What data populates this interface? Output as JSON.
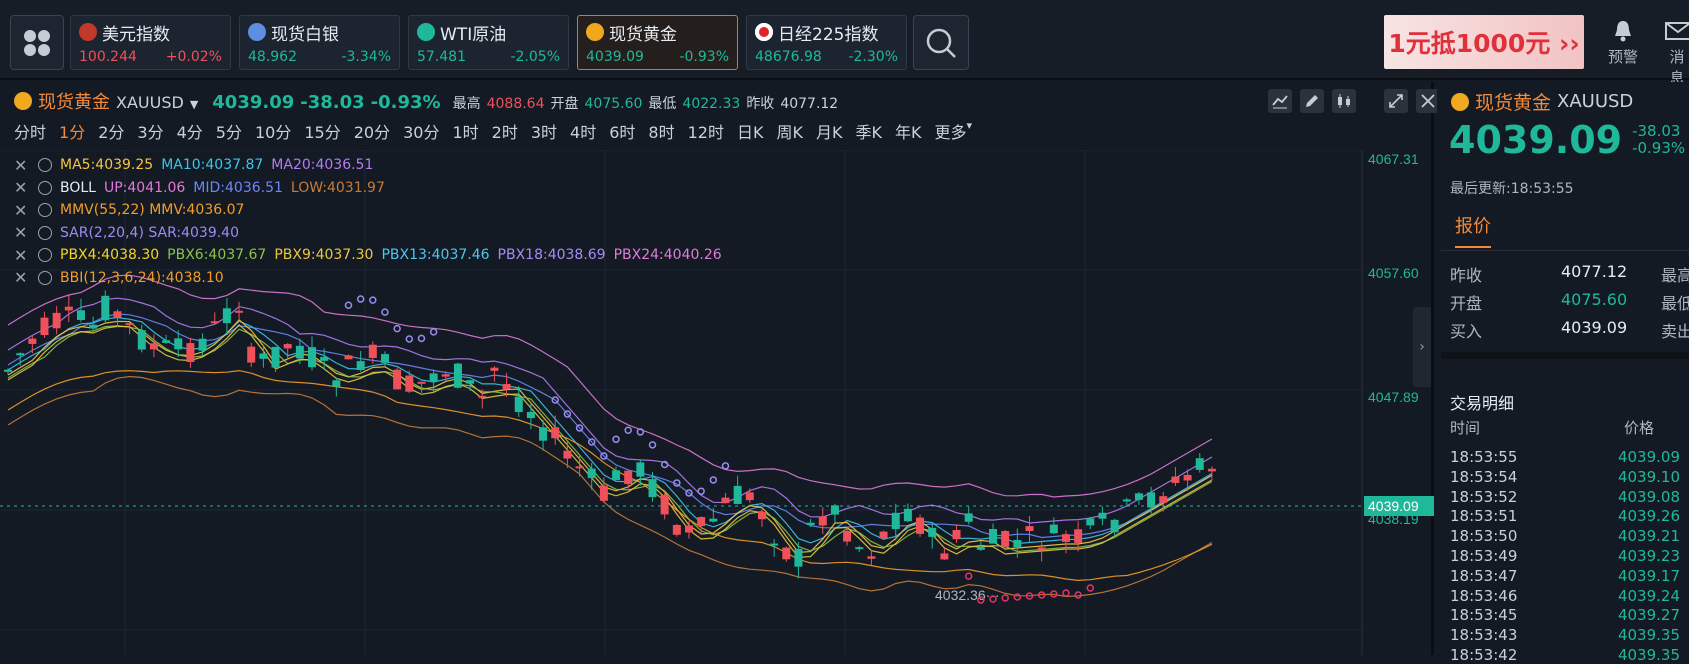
{
  "tickers": [
    {
      "name": "美元指数",
      "price": "100.244",
      "change": "+0.02%",
      "dir": "up",
      "flag": "us"
    },
    {
      "name": "现货白银",
      "price": "48.962",
      "change": "-3.34%",
      "dir": "dn",
      "flag": "silver"
    },
    {
      "name": "WTI原油",
      "price": "57.481",
      "change": "-2.05%",
      "dir": "dn",
      "flag": "oil"
    },
    {
      "name": "现货黄金",
      "price": "4039.09",
      "change": "-0.93%",
      "dir": "dn",
      "flag": "gold"
    },
    {
      "name": "日经225指数",
      "price": "48676.98",
      "change": "-2.30%",
      "dir": "dn",
      "flag": "jp"
    }
  ],
  "ad": {
    "text": "1元抵1000元 ››"
  },
  "topActions": {
    "alert": "预警",
    "message": "消息"
  },
  "chart": {
    "name": "现货黄金",
    "symbol": "XAUUSD",
    "price": "4039.09",
    "change": "-38.03",
    "pct": "-0.93%",
    "highLbl": "最高",
    "high": "4088.64",
    "openLbl": "开盘",
    "open": "4075.60",
    "lowLbl": "最低",
    "low": "4022.33",
    "prevLbl": "昨收",
    "prev": "4077.12",
    "periods": [
      "分时",
      "1分",
      "2分",
      "3分",
      "4分",
      "5分",
      "10分",
      "15分",
      "20分",
      "30分",
      "1时",
      "2时",
      "3时",
      "4时",
      "6时",
      "8时",
      "12时",
      "日K",
      "周K",
      "月K",
      "季K",
      "年K",
      "更多"
    ],
    "selectedPeriod": "1分"
  },
  "indicators": [
    [
      {
        "t": "MA5:4039.25",
        "c": "#f5c542"
      },
      {
        "t": "MA10:4037.87",
        "c": "#3cc4e8"
      },
      {
        "t": "MA20:4036.51",
        "c": "#b47cf2"
      }
    ],
    [
      {
        "t": "BOLL",
        "c": "#e6ebf1"
      },
      {
        "t": "UP:4041.06",
        "c": "#e07ad8"
      },
      {
        "t": "MID:4036.51",
        "c": "#6e86f5"
      },
      {
        "t": "LOW:4031.97",
        "c": "#c77b3a"
      }
    ],
    [
      {
        "t": "MMV(55,22) MMV:4036.07",
        "c": "#f39c2a"
      }
    ],
    [
      {
        "t": "SAR(2,20,4) SAR:4039.40",
        "c": "#9a8cf0"
      }
    ],
    [
      {
        "t": "PBX4:4038.30",
        "c": "#f5d322"
      },
      {
        "t": "PBX6:4037.67",
        "c": "#8bc34a"
      },
      {
        "t": "PBX9:4037.30",
        "c": "#e8c840"
      },
      {
        "t": "PBX13:4037.46",
        "c": "#4dc6f0"
      },
      {
        "t": "PBX18:4038.69",
        "c": "#a78bf5"
      },
      {
        "t": "PBX24:4040.26",
        "c": "#e07ad8"
      }
    ],
    [
      {
        "t": "BBI(12,3,6,24):4038.10",
        "c": "#f39c2a"
      }
    ]
  ],
  "axis": {
    "labels": [
      "4067.31",
      "4057.60",
      "4047.89",
      "4038.19"
    ],
    "current": "4039.09",
    "minMark": "4032.36"
  },
  "panel": {
    "name": "现货黄金",
    "symbol": "XAUUSD",
    "price": "4039.09",
    "change": "-38.03",
    "pct": "-0.93%",
    "updated": "最后更新:18:53:55",
    "tab": "报价",
    "quote": [
      {
        "l": "昨收",
        "v": "4077.12",
        "l2": "最高"
      },
      {
        "l": "开盘",
        "v": "4075.60",
        "l2": "最低"
      },
      {
        "l": "买入",
        "v": "4039.09",
        "l2": "卖出"
      }
    ],
    "tradesTitle": "交易明细",
    "colTime": "时间",
    "colPrice": "价格",
    "trades": [
      [
        "18:53:55",
        "4039.09"
      ],
      [
        "18:53:54",
        "4039.10"
      ],
      [
        "18:53:52",
        "4039.08"
      ],
      [
        "18:53:51",
        "4039.26"
      ],
      [
        "18:53:50",
        "4039.21"
      ],
      [
        "18:53:49",
        "4039.23"
      ],
      [
        "18:53:47",
        "4039.17"
      ],
      [
        "18:53:46",
        "4039.24"
      ],
      [
        "18:53:45",
        "4039.27"
      ],
      [
        "18:53:43",
        "4039.35"
      ],
      [
        "18:53:42",
        "4039.35"
      ]
    ]
  }
}
